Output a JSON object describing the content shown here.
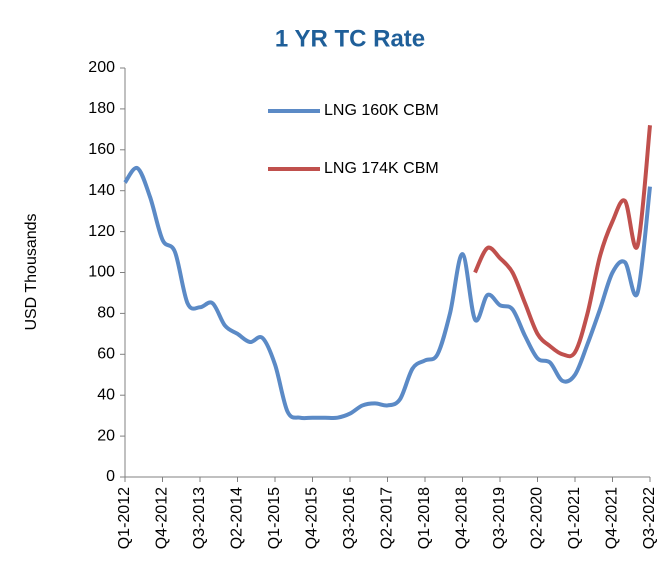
{
  "chart_data": {
    "type": "line",
    "title": "1 YR TC Rate",
    "y_label": "USD  Thousands",
    "categories": [
      "Q1-2012",
      null,
      null,
      "Q4-2012",
      null,
      null,
      "Q3-2013",
      null,
      null,
      "Q2-2014",
      null,
      null,
      "Q1-2015",
      null,
      null,
      "Q4-2015",
      null,
      null,
      "Q3-2016",
      null,
      null,
      "Q2-2017",
      null,
      null,
      "Q1-2018",
      null,
      null,
      "Q4-2018",
      null,
      null,
      "Q3-2019",
      null,
      null,
      "Q2-2020",
      null,
      null,
      "Q1-2021",
      null,
      null,
      "Q4-2021",
      null,
      null,
      "Q3-2022"
    ],
    "series": [
      {
        "name": "LNG 160K CBM",
        "color": "#5b8ac6",
        "values": [
          144,
          151,
          137,
          116,
          110,
          85,
          83,
          85,
          74,
          70,
          66,
          68,
          55,
          32,
          29,
          29,
          29,
          29,
          31,
          35,
          36,
          35,
          38,
          53,
          57,
          60,
          80,
          109,
          77,
          89,
          84,
          82,
          69,
          58,
          56,
          47,
          50,
          65,
          82,
          100,
          105,
          90,
          142
        ]
      },
      {
        "name": "LNG 174K CBM",
        "color": "#c0504d",
        "values": [
          null,
          null,
          null,
          null,
          null,
          null,
          null,
          null,
          null,
          null,
          null,
          null,
          null,
          null,
          null,
          null,
          null,
          null,
          null,
          null,
          null,
          null,
          null,
          null,
          null,
          null,
          null,
          null,
          100,
          112,
          107,
          100,
          85,
          70,
          64,
          60,
          61,
          80,
          108,
          125,
          135,
          113,
          172
        ]
      }
    ],
    "ylim": [
      0,
      200
    ],
    "yticks": [
      0,
      20,
      40,
      60,
      80,
      100,
      120,
      140,
      160,
      180,
      200
    ],
    "grid": false,
    "legend": "upper center"
  }
}
